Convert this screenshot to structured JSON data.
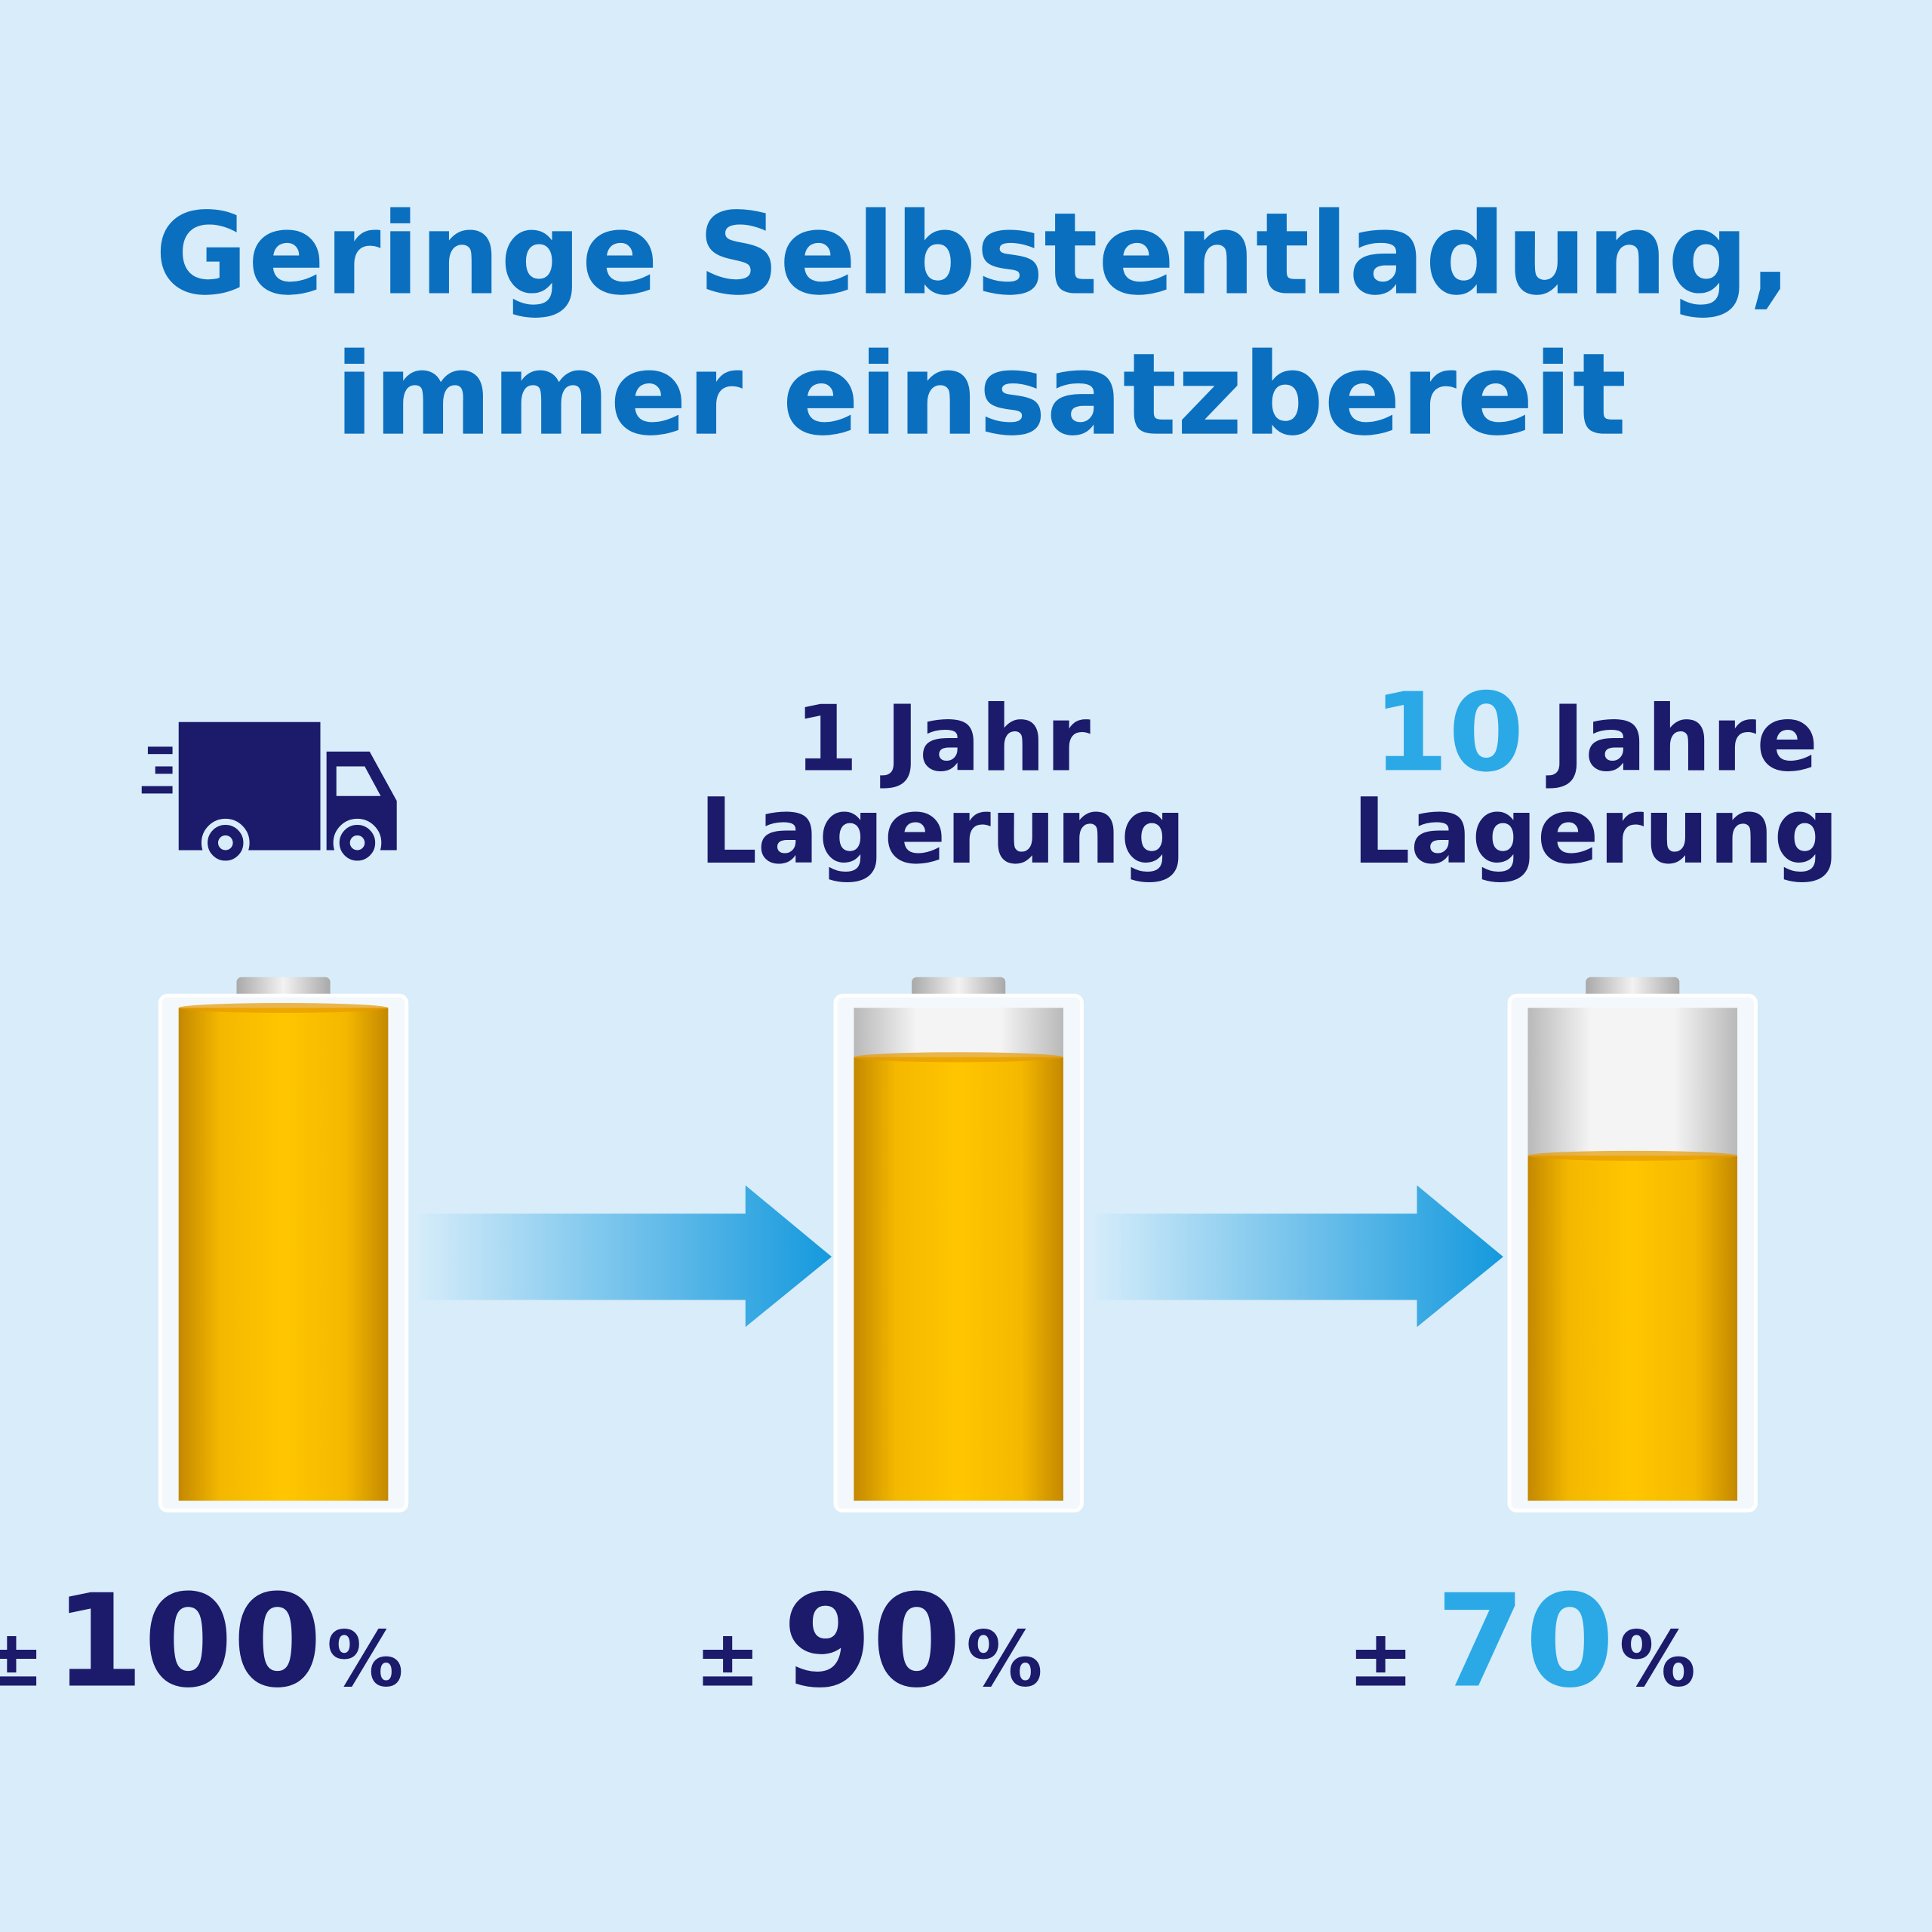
{
  "title": [
    "Geringe Selbstentladung,",
    "immer einsatzbereit"
  ],
  "stages": [
    {
      "percent": {
        "sign": "±",
        "value": 100,
        "unit": "%",
        "color": "#1b1a6b"
      }
    },
    {
      "heading": {
        "number": 1,
        "number_color": "#1b1a6b",
        "word": "Jahr",
        "line2": "Lagerung"
      },
      "percent": {
        "sign": "±",
        "value": 90,
        "unit": "%",
        "color": "#1b1a6b"
      }
    },
    {
      "heading": {
        "number": 10,
        "number_color": "#2aa9e6",
        "word": "Jahre",
        "line2": "Lagerung"
      },
      "percent": {
        "sign": "±",
        "value": 70,
        "unit": "%",
        "color": "#2aa9e6"
      }
    }
  ]
}
